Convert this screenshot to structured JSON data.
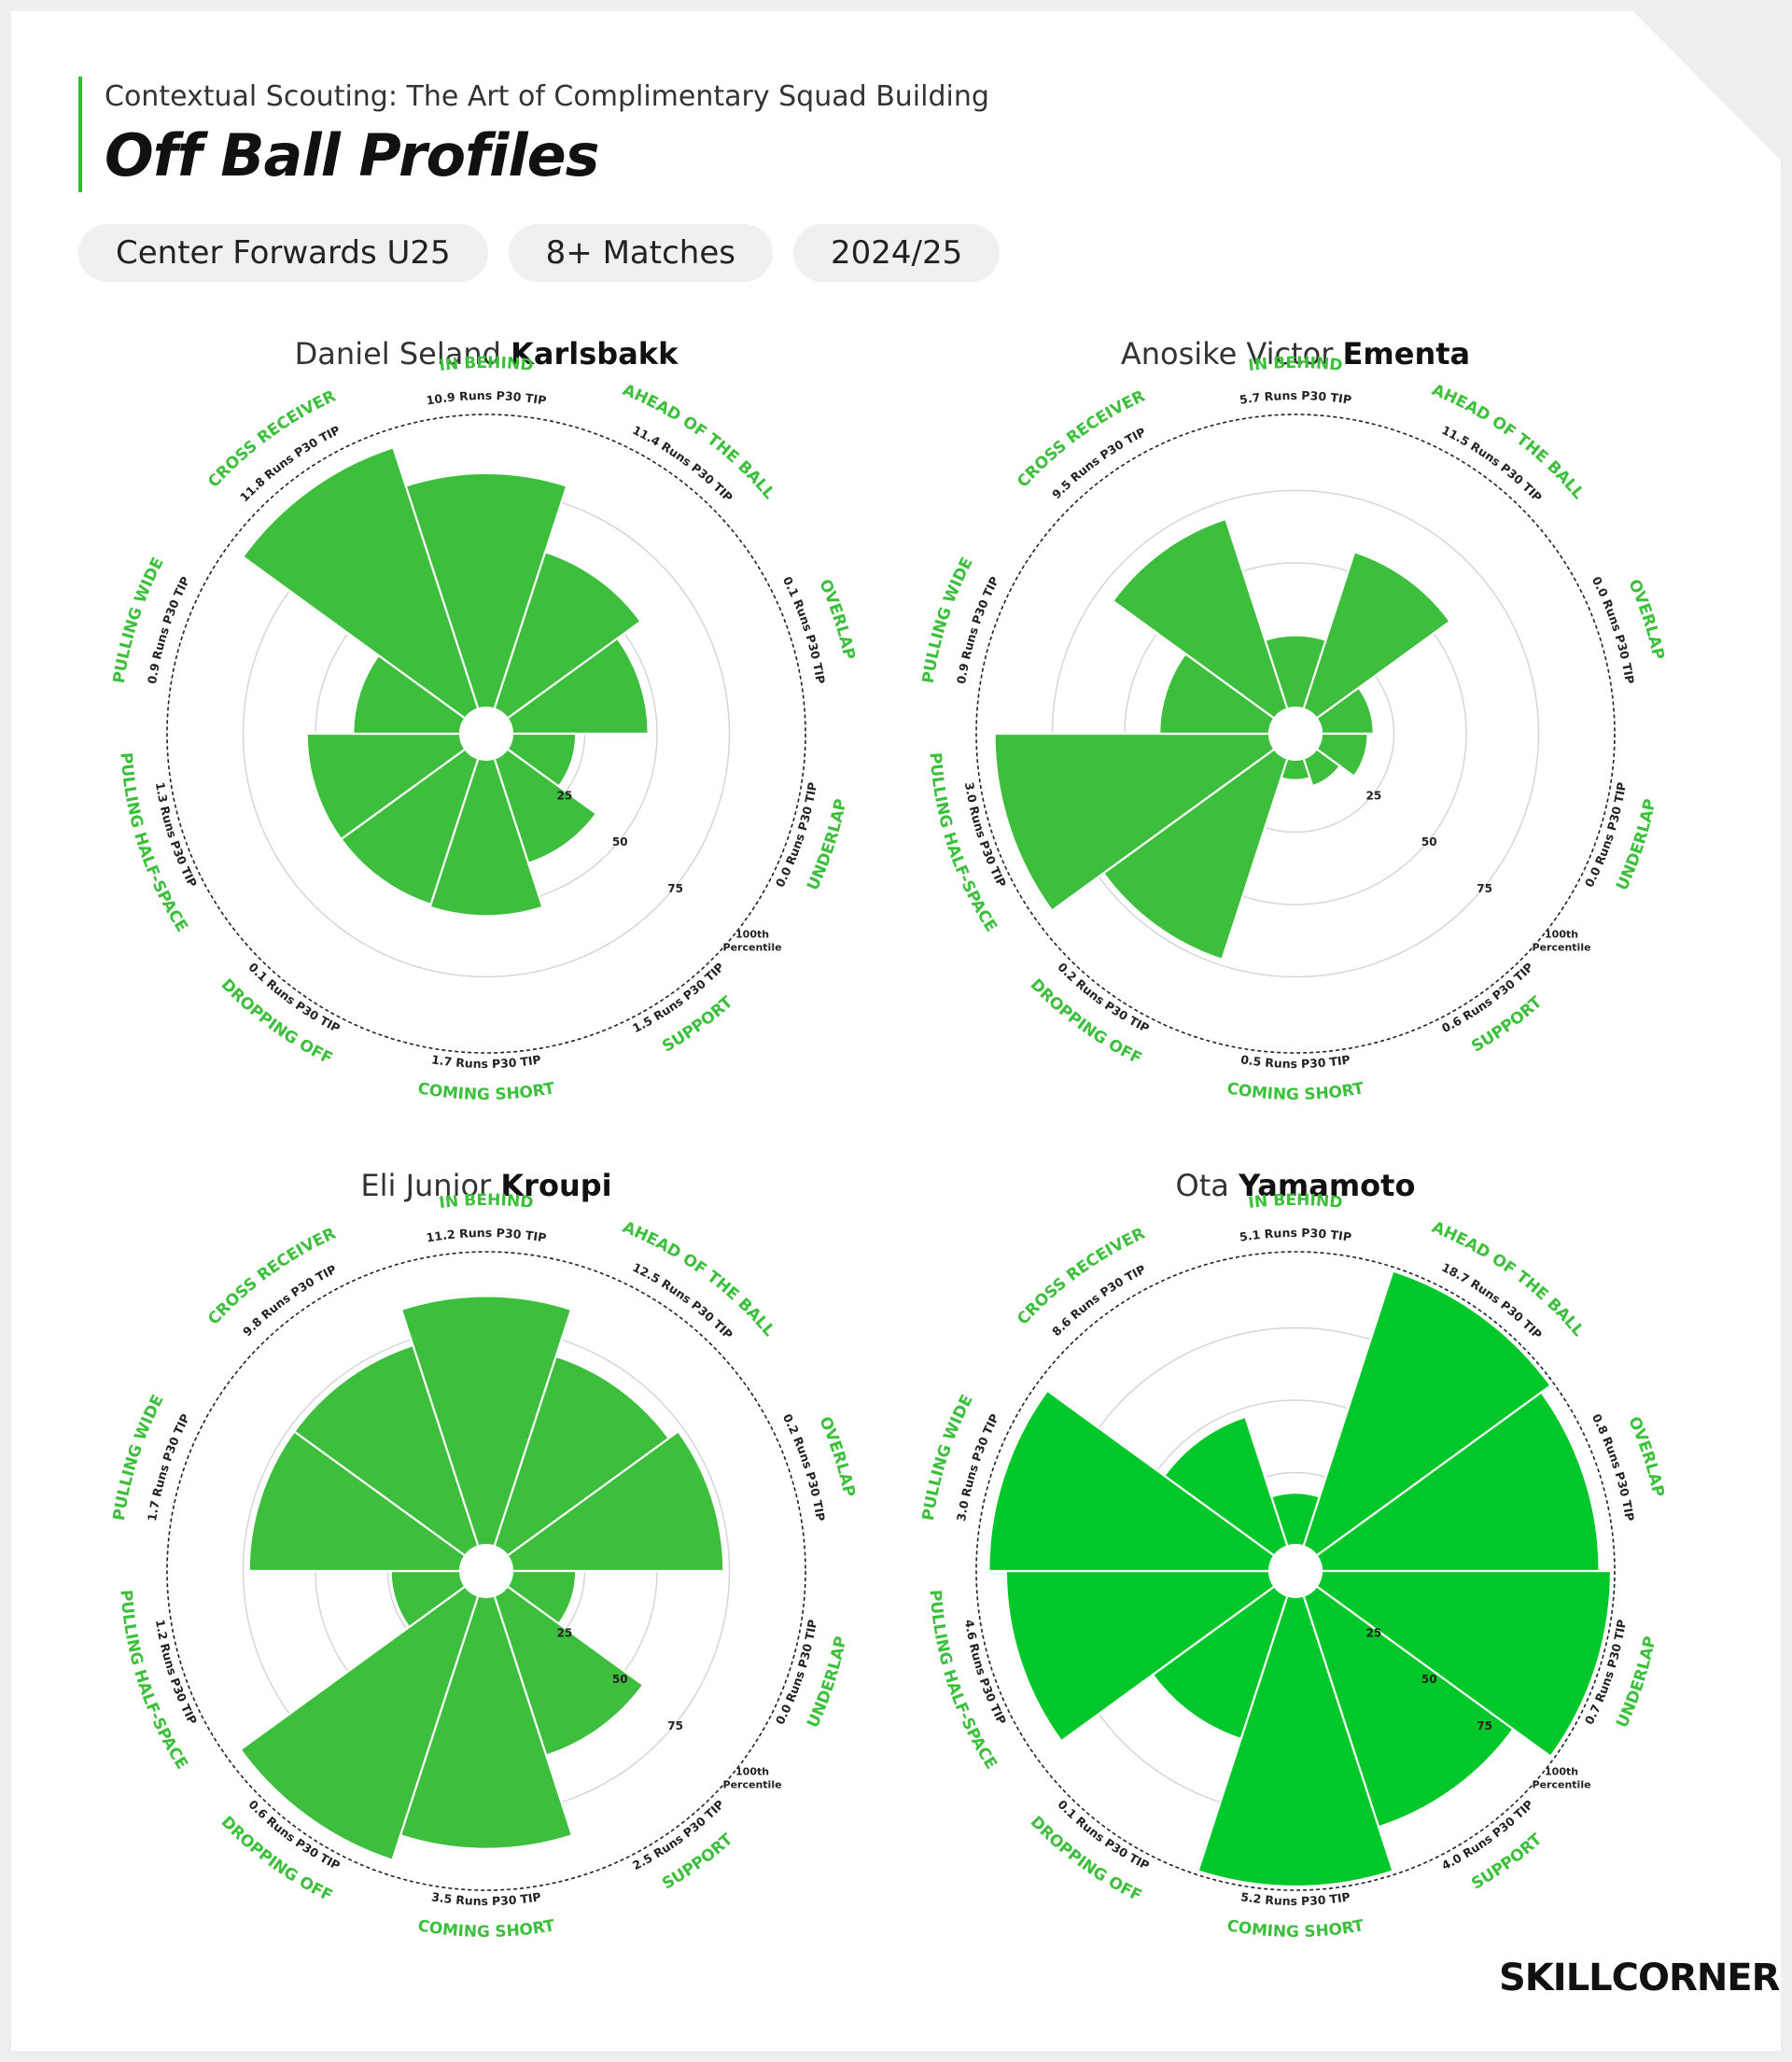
{
  "header": {
    "kicker": "Contextual Scouting: The Art of Complimentary Squad Building",
    "title": "Off Ball Profiles",
    "filters": [
      "Center Forwards U25",
      "8+ Matches",
      "2024/25"
    ]
  },
  "logo_text": "SKILLCORNER",
  "colors": {
    "accent": "#2fbe2f",
    "wedge_standard": "#3dbf3d",
    "wedge_highlight": "#00c82a",
    "label_green": "#3cc03c"
  },
  "chart_data": [
    {
      "type": "polar-area",
      "player": {
        "first": "Daniel Seland",
        "last": "Karlsbakk"
      },
      "color": "#3dbf3d",
      "ring_labels": [
        "25",
        "50",
        "75",
        "100th Percentile"
      ],
      "categories": [
        "IN BEHIND",
        "AHEAD OF THE BALL",
        "OVERLAP",
        "UNDERLAP",
        "SUPPORT",
        "COMING SHORT",
        "DROPPING OFF",
        "PULLING HALF-SPACE",
        "PULLING WIDE",
        "CROSS RECEIVER"
      ],
      "value_labels": [
        "10.9 Runs P30 TIP",
        "11.4 Runs P30 TIP",
        "0.1 Runs P30 TIP",
        "0.0 Runs P30 TIP",
        "1.5 Runs P30 TIP",
        "1.7 Runs P30 TIP",
        "0.1 Runs P30 TIP",
        "1.3 Runs P30 TIP",
        "0.9 Runs P30 TIP",
        "11.8 Runs P30 TIP"
      ],
      "percentiles": [
        81,
        57,
        47,
        22,
        38,
        54,
        53,
        53,
        37,
        95
      ]
    },
    {
      "type": "polar-area",
      "player": {
        "first": "Anosike Victor",
        "last": "Ementa"
      },
      "color": "#3dbf3d",
      "ring_labels": [
        "25",
        "50",
        "75",
        "100th Percentile"
      ],
      "categories": [
        "IN BEHIND",
        "AHEAD OF THE BALL",
        "OVERLAP",
        "UNDERLAP",
        "SUPPORT",
        "COMING SHORT",
        "DROPPING OFF",
        "PULLING HALF-SPACE",
        "PULLING WIDE",
        "CROSS RECEIVER"
      ],
      "value_labels": [
        "5.7 Runs P30 TIP",
        "11.5 Runs P30 TIP",
        "0.0 Runs P30 TIP",
        "0.0 Runs P30 TIP",
        "0.6 Runs P30 TIP",
        "0.5 Runs P30 TIP",
        "0.2 Runs P30 TIP",
        "3.0 Runs P30 TIP",
        "0.9 Runs P30 TIP",
        "9.5 Runs P30 TIP"
      ],
      "percentiles": [
        25,
        57,
        18,
        16,
        10,
        7,
        73,
        95,
        38,
        69
      ]
    },
    {
      "type": "polar-area",
      "player": {
        "first": "Eli Junior",
        "last": "Kroupi"
      },
      "color": "#3dbf3d",
      "ring_labels": [
        "25",
        "50",
        "75",
        "100th Percentile"
      ],
      "categories": [
        "IN BEHIND",
        "AHEAD OF THE BALL",
        "OVERLAP",
        "UNDERLAP",
        "SUPPORT",
        "COMING SHORT",
        "DROPPING OFF",
        "PULLING HALF-SPACE",
        "PULLING WIDE",
        "CROSS RECEIVER"
      ],
      "value_labels": [
        "11.2 Runs P30 TIP",
        "12.5 Runs P30 TIP",
        "0.2 Runs P30 TIP",
        "0.0 Runs P30 TIP",
        "2.5 Runs P30 TIP",
        "3.5 Runs P30 TIP",
        "0.6 Runs P30 TIP",
        "1.2 Runs P30 TIP",
        "1.7 Runs P30 TIP",
        "9.8 Runs P30 TIP"
      ],
      "percentiles": [
        86,
        69,
        73,
        22,
        58,
        87,
        96,
        24,
        73,
        73
      ]
    },
    {
      "type": "polar-area",
      "player": {
        "first": "Ota",
        "last": "Yamamoto"
      },
      "color": "#00c82a",
      "ring_labels": [
        "25",
        "50",
        "75",
        "100th Percentile"
      ],
      "categories": [
        "IN BEHIND",
        "AHEAD OF THE BALL",
        "OVERLAP",
        "UNDERLAP",
        "SUPPORT",
        "COMING SHORT",
        "DROPPING OFF",
        "PULLING HALF-SPACE",
        "PULLING WIDE",
        "CROSS RECEIVER"
      ],
      "value_labels": [
        "5.1 Runs P30 TIP",
        "18.7 Runs P30 TIP",
        "0.8 Runs P30 TIP",
        "0.7 Runs P30 TIP",
        "4.0 Runs P30 TIP",
        "5.2 Runs P30 TIP",
        "0.1 Runs P30 TIP",
        "4.6 Runs P30 TIP",
        "3.0 Runs P30 TIP",
        "8.6 Runs P30 TIP"
      ],
      "percentiles": [
        18,
        100,
        96,
        100,
        84,
        100,
        52,
        91,
        97,
        47
      ]
    }
  ]
}
